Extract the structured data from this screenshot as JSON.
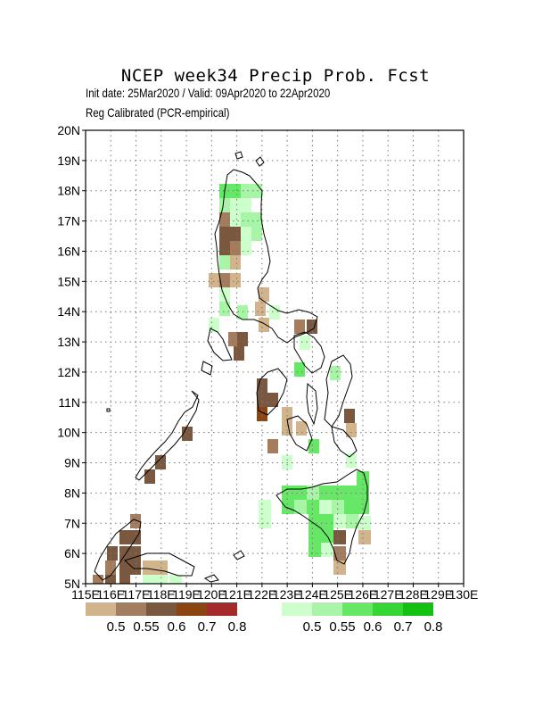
{
  "header": {
    "title": "NCEP week34 Precip Prob. Fcst",
    "init_line": "Init date: 25Mar2020 / Valid: 09Apr2020 to 22Apr2020",
    "method_line": "Reg Calibrated (PCR-empirical)"
  },
  "map": {
    "lat_labels": [
      "20N",
      "19N",
      "18N",
      "17N",
      "16N",
      "15N",
      "14N",
      "13N",
      "12N",
      "11N",
      "10N",
      "9N",
      "8N",
      "7N",
      "6N",
      "5N"
    ],
    "lon_labels": [
      "115E",
      "116E",
      "117E",
      "118E",
      "119E",
      "120E",
      "121E",
      "122E",
      "123E",
      "124E",
      "125E",
      "126E",
      "127E",
      "128E",
      "129E",
      "130E"
    ],
    "grid": "dotted",
    "region": "Philippines"
  },
  "legend": {
    "dry": {
      "labels": [
        "0.5",
        "0.55",
        "0.6",
        "0.7",
        "0.8"
      ],
      "colors": [
        "#d2b48c",
        "#a47c5e",
        "#7a5840",
        "#8b4513",
        "#a52a2a"
      ]
    },
    "wet": {
      "labels": [
        "0.5",
        "0.55",
        "0.6",
        "0.7",
        "0.8"
      ],
      "colors": [
        "#ccffcc",
        "#a8f5a8",
        "#66e866",
        "#33d633",
        "#13c113"
      ]
    }
  }
}
